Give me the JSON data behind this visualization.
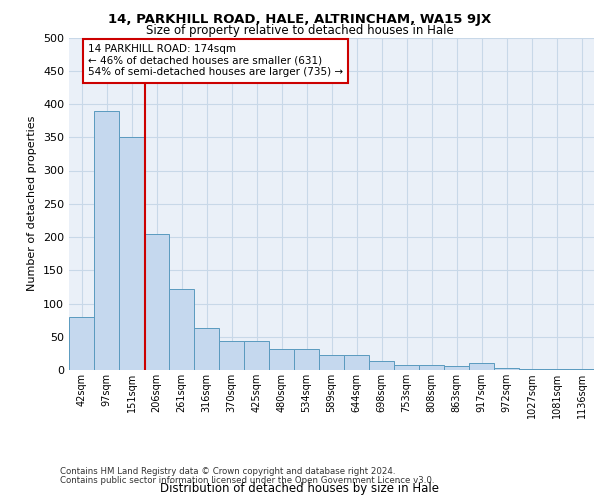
{
  "title1": "14, PARKHILL ROAD, HALE, ALTRINCHAM, WA15 9JX",
  "title2": "Size of property relative to detached houses in Hale",
  "xlabel": "Distribution of detached houses by size in Hale",
  "ylabel": "Number of detached properties",
  "footer1": "Contains HM Land Registry data © Crown copyright and database right 2024.",
  "footer2": "Contains public sector information licensed under the Open Government Licence v3.0.",
  "annotation_line1": "14 PARKHILL ROAD: 174sqm",
  "annotation_line2": "← 46% of detached houses are smaller (631)",
  "annotation_line3": "54% of semi-detached houses are larger (735) →",
  "bar_labels": [
    "42sqm",
    "97sqm",
    "151sqm",
    "206sqm",
    "261sqm",
    "316sqm",
    "370sqm",
    "425sqm",
    "480sqm",
    "534sqm",
    "589sqm",
    "644sqm",
    "698sqm",
    "753sqm",
    "808sqm",
    "863sqm",
    "917sqm",
    "972sqm",
    "1027sqm",
    "1081sqm",
    "1136sqm"
  ],
  "bar_values": [
    80,
    390,
    350,
    205,
    122,
    63,
    43,
    43,
    32,
    32,
    22,
    23,
    14,
    7,
    7,
    6,
    10,
    3,
    1,
    1,
    2
  ],
  "bar_color": "#c5d8ee",
  "bar_edge_color": "#5a9abf",
  "grid_color": "#c8d8e8",
  "bg_color": "#eaf0f8",
  "vline_x": 2.55,
  "vline_color": "#cc0000",
  "annotation_box_color": "#ffffff",
  "annotation_box_edge": "#cc0000",
  "ylim": [
    0,
    500
  ],
  "yticks": [
    0,
    50,
    100,
    150,
    200,
    250,
    300,
    350,
    400,
    450,
    500
  ]
}
